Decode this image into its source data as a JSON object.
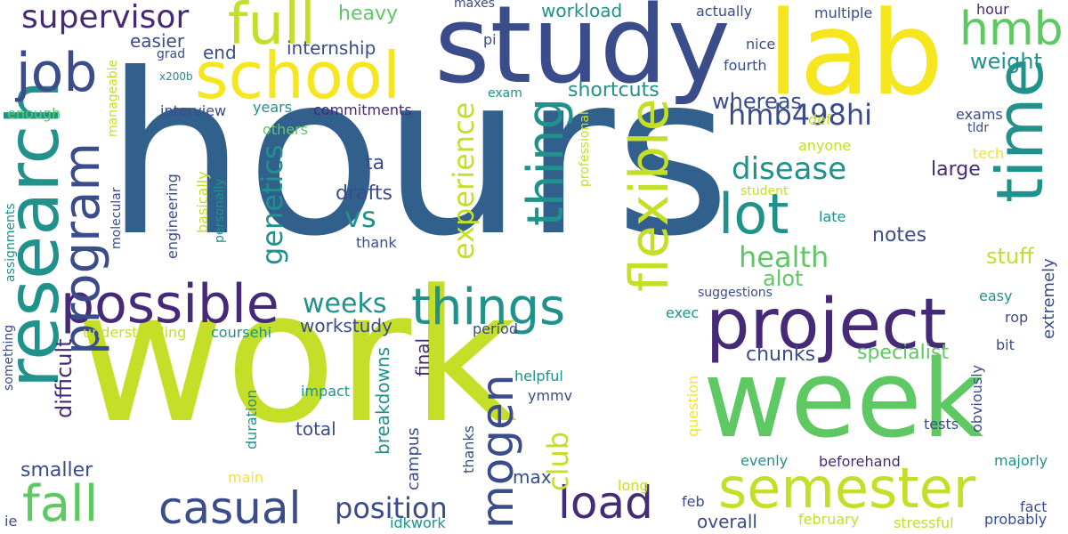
{
  "palette": {
    "background": "#ffffff",
    "blue": "#31608d",
    "indigo": "#3b4c8a",
    "purple": "#462a77",
    "teal": "#21918c",
    "green": "#5ec962",
    "lime": "#c5de27",
    "yellow": "#f5e61e"
  },
  "words": [
    {
      "text": "hours",
      "color": "#31608d"
    },
    {
      "text": "work",
      "color": "#c5de27"
    },
    {
      "text": "study",
      "color": "#3b4c8a"
    },
    {
      "text": "lab",
      "color": "#f5e61e"
    },
    {
      "text": "week",
      "color": "#5ec962"
    },
    {
      "text": "research",
      "color": "#21918c"
    },
    {
      "text": "project",
      "color": "#462a77"
    },
    {
      "text": "school",
      "color": "#f5e61e"
    },
    {
      "text": "time",
      "color": "#21918c"
    },
    {
      "text": "semester",
      "color": "#c5de27"
    },
    {
      "text": "possible",
      "color": "#462a77"
    },
    {
      "text": "program",
      "color": "#3b4c8a"
    },
    {
      "text": "lot",
      "color": "#21918c"
    },
    {
      "text": "full",
      "color": "#c5de27"
    },
    {
      "text": "job",
      "color": "#3b4c8a"
    },
    {
      "text": "flexible",
      "color": "#c5de27"
    },
    {
      "text": "things",
      "color": "#21918c"
    },
    {
      "text": "thing",
      "color": "#21918c"
    },
    {
      "text": "hmb",
      "color": "#5ec962"
    },
    {
      "text": "fall",
      "color": "#5ec962"
    },
    {
      "text": "casual",
      "color": "#3b4c8a"
    },
    {
      "text": "load",
      "color": "#462a77"
    },
    {
      "text": "mogen",
      "color": "#3b4c8a"
    },
    {
      "text": "supervisor",
      "color": "#462a77"
    },
    {
      "text": "hmb498hi",
      "color": "#3b4c8a"
    },
    {
      "text": "disease",
      "color": "#21918c"
    },
    {
      "text": "experience",
      "color": "#c5de27"
    },
    {
      "text": "genetics",
      "color": "#21918c"
    },
    {
      "text": "position",
      "color": "#3b4c8a"
    },
    {
      "text": "health",
      "color": "#5ec962"
    },
    {
      "text": "vs",
      "color": "#21918c"
    },
    {
      "text": "club",
      "color": "#c5de27"
    },
    {
      "text": "weeks",
      "color": "#21918c"
    },
    {
      "text": "weight",
      "color": "#21918c"
    },
    {
      "text": "difficult",
      "color": "#462a77"
    },
    {
      "text": "shortcuts",
      "color": "#21918c"
    },
    {
      "text": "whereas",
      "color": "#3b4c8a"
    },
    {
      "text": "heavy",
      "color": "#5ec962"
    },
    {
      "text": "workload",
      "color": "#21918c"
    },
    {
      "text": "easier",
      "color": "#3b4c8a"
    },
    {
      "text": "end",
      "color": "#3b4c8a"
    },
    {
      "text": "internship",
      "color": "#3b4c8a"
    },
    {
      "text": "stuff",
      "color": "#c5de27"
    },
    {
      "text": "notes",
      "color": "#3b4c8a"
    },
    {
      "text": "drafts",
      "color": "#3b4c8a"
    },
    {
      "text": "ta",
      "color": "#3b4c8a"
    },
    {
      "text": "large",
      "color": "#462a77"
    },
    {
      "text": "alot",
      "color": "#5ec962"
    },
    {
      "text": "specialist",
      "color": "#5ec962"
    },
    {
      "text": "chunks",
      "color": "#3b4c8a"
    },
    {
      "text": "workstudy",
      "color": "#3b4c8a"
    },
    {
      "text": "breakdowns",
      "color": "#21918c"
    },
    {
      "text": "final",
      "color": "#462a77"
    },
    {
      "text": "smaller",
      "color": "#3b4c8a"
    },
    {
      "text": "total",
      "color": "#3b4c8a"
    },
    {
      "text": "campus",
      "color": "#3b4c8a"
    },
    {
      "text": "max",
      "color": "#3b4c8a"
    },
    {
      "text": "overall",
      "color": "#3b4c8a"
    },
    {
      "text": "maxes",
      "color": "#3b4c8a"
    },
    {
      "text": "actually",
      "color": "#3b4c8a"
    },
    {
      "text": "multiple",
      "color": "#3b4c8a"
    },
    {
      "text": "hour",
      "color": "#462a77"
    },
    {
      "text": "nice",
      "color": "#3b4c8a"
    },
    {
      "text": "fourth",
      "color": "#3b4c8a"
    },
    {
      "text": "exams",
      "color": "#3b4c8a"
    },
    {
      "text": "tldr",
      "color": "#3b4c8a"
    },
    {
      "text": "def",
      "color": "#c5de27"
    },
    {
      "text": "anyone",
      "color": "#c5de27"
    },
    {
      "text": "tech",
      "color": "#f5e61e"
    },
    {
      "text": "student",
      "color": "#c5de27"
    },
    {
      "text": "late",
      "color": "#21918c"
    },
    {
      "text": "easy",
      "color": "#21918c"
    },
    {
      "text": "suggestions",
      "color": "#3b4c8a"
    },
    {
      "text": "rop",
      "color": "#3b4c8a"
    },
    {
      "text": "bit",
      "color": "#3b4c8a"
    },
    {
      "text": "extremely",
      "color": "#3b4c8a"
    },
    {
      "text": "exec",
      "color": "#21918c"
    },
    {
      "text": "period",
      "color": "#3b4c8a"
    },
    {
      "text": "helpful",
      "color": "#21918c"
    },
    {
      "text": "ymmv",
      "color": "#3b4c8a"
    },
    {
      "text": "impact",
      "color": "#21918c"
    },
    {
      "text": "duration",
      "color": "#21918c"
    },
    {
      "text": "understanding",
      "color": "#c5de27"
    },
    {
      "text": "coursehi",
      "color": "#21918c"
    },
    {
      "text": "thanks",
      "color": "#3b4c8a"
    },
    {
      "text": "long",
      "color": "#c5de27"
    },
    {
      "text": "main",
      "color": "#f5e61e"
    },
    {
      "text": "question",
      "color": "#f5e61e"
    },
    {
      "text": "feb",
      "color": "#3b4c8a"
    },
    {
      "text": "evenly",
      "color": "#21918c"
    },
    {
      "text": "beforehand",
      "color": "#462a77"
    },
    {
      "text": "tests",
      "color": "#3b4c8a"
    },
    {
      "text": "obviously",
      "color": "#3b4c8a"
    },
    {
      "text": "majorly",
      "color": "#21918c"
    },
    {
      "text": "fact",
      "color": "#3b4c8a"
    },
    {
      "text": "probably",
      "color": "#3b4c8a"
    },
    {
      "text": "stressful",
      "color": "#c5de27"
    },
    {
      "text": "february",
      "color": "#c5de27"
    },
    {
      "text": "idkwork",
      "color": "#21918c"
    },
    {
      "text": "ie",
      "color": "#3b4c8a"
    },
    {
      "text": "something",
      "color": "#3b4c8a"
    },
    {
      "text": "assignments",
      "color": "#21918c"
    },
    {
      "text": "molecular",
      "color": "#3b4c8a"
    },
    {
      "text": "engineering",
      "color": "#3b4c8a"
    },
    {
      "text": "basically",
      "color": "#c5de27"
    },
    {
      "text": "personally",
      "color": "#21918c"
    },
    {
      "text": "thank",
      "color": "#3b4c8a"
    },
    {
      "text": "manageable",
      "color": "#c5de27"
    },
    {
      "text": "enough",
      "color": "#5ec962"
    },
    {
      "text": "interview",
      "color": "#3b4c8a"
    },
    {
      "text": "years",
      "color": "#21918c"
    },
    {
      "text": "commitments",
      "color": "#462a77"
    },
    {
      "text": "others",
      "color": "#5ec962"
    },
    {
      "text": "exam",
      "color": "#21918c"
    },
    {
      "text": "grad",
      "color": "#3b4c8a"
    },
    {
      "text": "x200b",
      "color": "#21918c"
    },
    {
      "text": "pi",
      "color": "#3b4c8a"
    },
    {
      "text": "professional",
      "color": "#c5de27"
    }
  ]
}
